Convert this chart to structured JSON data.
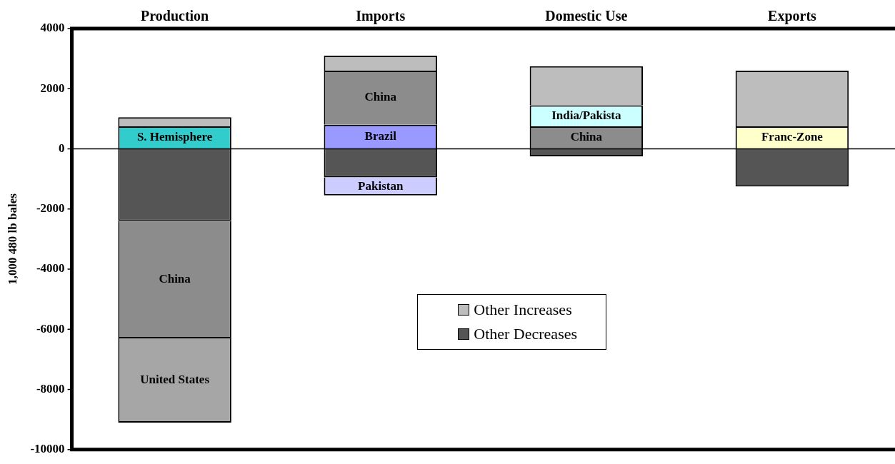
{
  "chart_data": {
    "type": "bar",
    "stacked": true,
    "ylabel": "1,000 480 lb bales",
    "categories": [
      "Production",
      "Imports",
      "Domestic Use",
      "Exports"
    ],
    "ylim": [
      -10000,
      4000
    ],
    "yticks": [
      -10000,
      -8000,
      -6000,
      -4000,
      -2000,
      0,
      2000,
      4000
    ],
    "legend": "center",
    "series": [
      {
        "name": "S. Hemisphere",
        "color": "#33cccc",
        "values": [
          750,
          null,
          null,
          null
        ]
      },
      {
        "name": "Brazil",
        "color": "#9999ff",
        "values": [
          null,
          800,
          null,
          null
        ]
      },
      {
        "name": "Franc-Zone",
        "color": "#ffffcc",
        "values": [
          null,
          null,
          null,
          750
        ]
      },
      {
        "name": "Other Decreases",
        "color": "#555555",
        "values": [
          -2400,
          -950,
          -250,
          -1250
        ]
      },
      {
        "name": "China",
        "color": "#8c8c8c",
        "values": [
          -3900,
          1800,
          750,
          null
        ]
      },
      {
        "name": "India/Pakista",
        "color": "#ccffff",
        "values": [
          null,
          null,
          700,
          null
        ]
      },
      {
        "name": "United States",
        "color": "#a6a6a6",
        "values": [
          -2800,
          null,
          null,
          null
        ]
      },
      {
        "name": "Pakistan",
        "color": "#ccccff",
        "values": [
          null,
          -600,
          null,
          null
        ]
      },
      {
        "name": "Other Increases",
        "color": "#bdbdbd",
        "values": [
          300,
          500,
          1300,
          1850
        ]
      }
    ]
  }
}
